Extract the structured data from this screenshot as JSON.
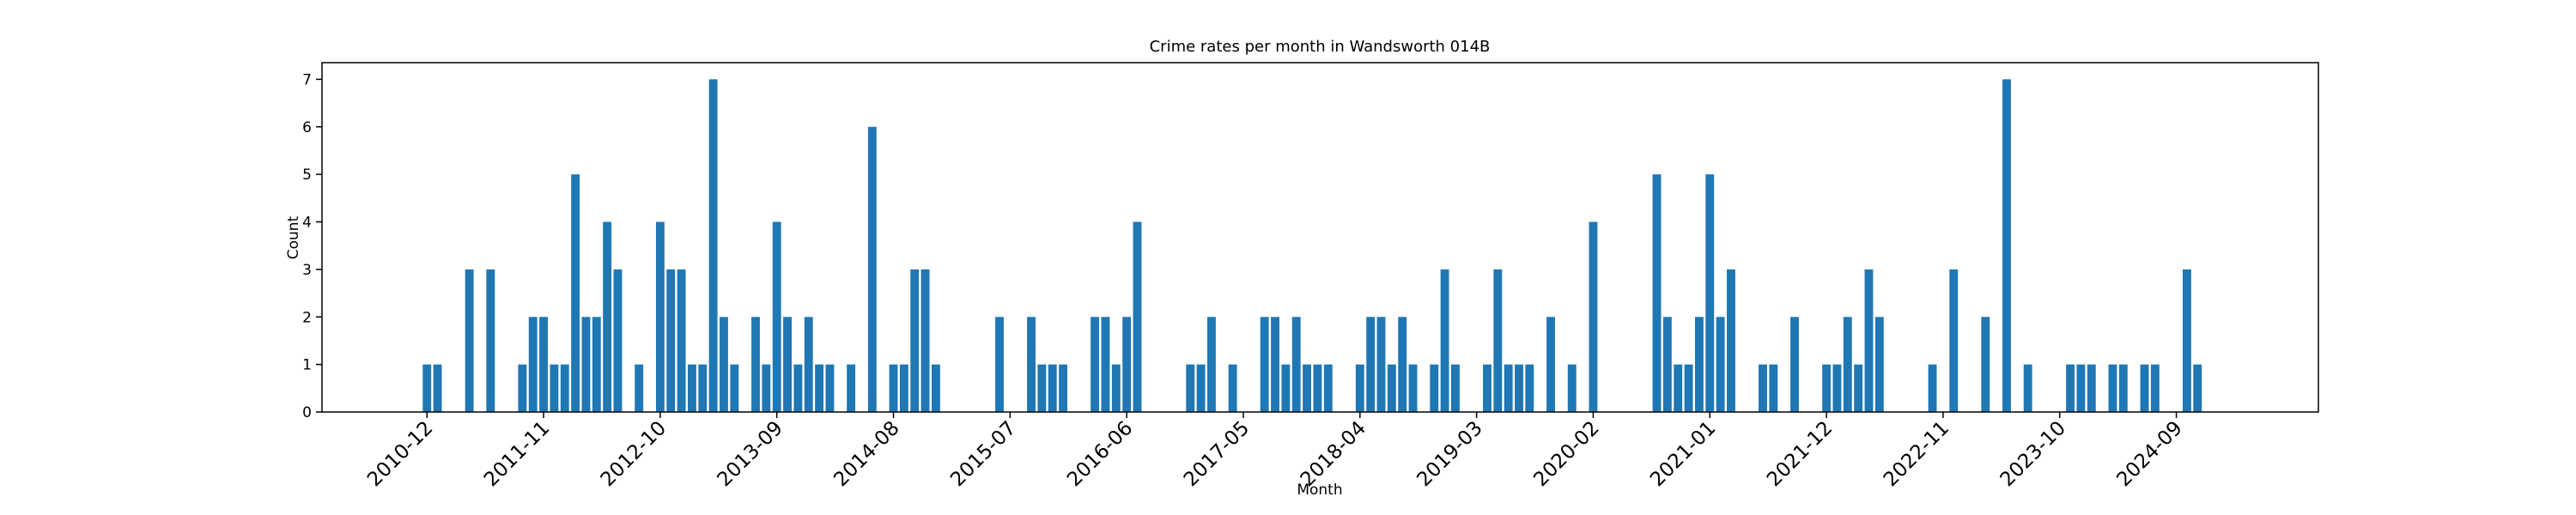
{
  "chart_data": {
    "type": "bar",
    "title": "Crime rates per month in Wandsworth 014B",
    "x_label": "Month",
    "y_label": "Count",
    "color": "#1f77b4",
    "categories": [
      "2010-12",
      null,
      null,
      null,
      null,
      null,
      null,
      null,
      null,
      null,
      null,
      "2011-11",
      null,
      null,
      null,
      null,
      null,
      null,
      null,
      null,
      null,
      null,
      "2012-10",
      null,
      null,
      null,
      null,
      null,
      null,
      null,
      null,
      null,
      null,
      "2013-09",
      null,
      null,
      null,
      null,
      null,
      null,
      null,
      null,
      null,
      null,
      "2014-08",
      null,
      null,
      null,
      null,
      null,
      null,
      null,
      null,
      null,
      null,
      "2015-07",
      null,
      null,
      null,
      null,
      null,
      null,
      null,
      null,
      null,
      null,
      "2016-06",
      null,
      null,
      null,
      null,
      null,
      null,
      null,
      null,
      null,
      null,
      "2017-05",
      null,
      null,
      null,
      null,
      null,
      null,
      null,
      null,
      null,
      null,
      "2018-04",
      null,
      null,
      null,
      null,
      null,
      null,
      null,
      null,
      null,
      null,
      "2019-03",
      null,
      null,
      null,
      null,
      null,
      null,
      null,
      null,
      null,
      null,
      "2020-02",
      null,
      null,
      null,
      null,
      null,
      null,
      null,
      null,
      null,
      null,
      "2021-01",
      null,
      null,
      null,
      null,
      null,
      null,
      null,
      null,
      null,
      null,
      "2021-12",
      null,
      null,
      null,
      null,
      null,
      null,
      null,
      null,
      null,
      null,
      "2022-11",
      null,
      null,
      null,
      null,
      null,
      null,
      null,
      null,
      null,
      null,
      "2023-10",
      null,
      null,
      null,
      null,
      null,
      null,
      null,
      null,
      null,
      null,
      "2024-09",
      null,
      null
    ],
    "values": [
      1,
      1,
      0,
      0,
      3,
      0,
      3,
      0,
      0,
      1,
      2,
      2,
      1,
      1,
      5,
      2,
      2,
      4,
      3,
      0,
      1,
      0,
      4,
      3,
      3,
      1,
      1,
      7,
      2,
      1,
      0,
      2,
      1,
      4,
      2,
      1,
      2,
      1,
      1,
      0,
      1,
      0,
      6,
      0,
      1,
      1,
      3,
      3,
      1,
      0,
      0,
      0,
      0,
      0,
      2,
      0,
      0,
      2,
      1,
      1,
      1,
      0,
      0,
      2,
      2,
      1,
      2,
      4,
      0,
      0,
      0,
      0,
      1,
      1,
      2,
      0,
      1,
      0,
      0,
      2,
      2,
      1,
      2,
      1,
      1,
      1,
      0,
      0,
      1,
      2,
      2,
      1,
      2,
      1,
      0,
      1,
      3,
      1,
      0,
      0,
      1,
      3,
      1,
      1,
      1,
      0,
      2,
      0,
      1,
      0,
      4,
      0,
      0,
      0,
      0,
      0,
      5,
      2,
      1,
      1,
      2,
      5,
      2,
      3,
      0,
      0,
      1,
      1,
      0,
      2,
      0,
      0,
      1,
      1,
      2,
      1,
      3,
      2,
      0,
      0,
      0,
      0,
      1,
      0,
      3,
      0,
      0,
      2,
      0,
      7,
      0,
      1,
      0,
      0,
      0,
      1,
      1,
      1,
      0,
      1,
      1,
      0,
      1,
      1,
      0,
      0,
      3,
      1
    ],
    "ylim": [
      0,
      7.35
    ],
    "yticks": [
      0,
      1,
      2,
      3,
      4,
      5,
      6,
      7
    ]
  }
}
